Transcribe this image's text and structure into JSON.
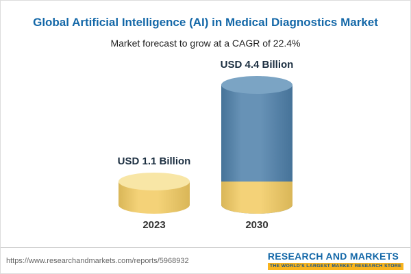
{
  "header": {
    "title": "Global Artificial Intelligence (AI) in Medical Diagnostics Market",
    "subtitle": "Market forecast to grow at a CAGR of 22.4%"
  },
  "chart_data": {
    "type": "bar",
    "title": "Global Artificial Intelligence (AI) in Medical Diagnostics Market",
    "subtitle": "Market forecast to grow at a CAGR of 22.4%",
    "cagr_pct": 22.4,
    "unit": "USD Billion",
    "categories": [
      "2023",
      "2030"
    ],
    "values": [
      1.1,
      4.4
    ],
    "value_labels": [
      "USD 1.1 Billion",
      "USD 4.4 Billion"
    ],
    "legend": "none",
    "axes": "none",
    "notes": "Cylinder-style bars; the 2030 bar has a gold base segment equal in height to the 2023 value, blue above it",
    "colors": {
      "accent_blue": "#1468a8",
      "bar_gold": "#f2cb62",
      "bar_gold_light": "#f8e6a6",
      "bar_blue": "#4e80aa",
      "bar_blue_light": "#7ba4c4",
      "brand_yellow": "#f8b41e"
    }
  },
  "footer": {
    "source_url": "https://www.researchandmarkets.com/reports/5968932",
    "brand_name": "RESEARCH AND MARKETS",
    "brand_tagline": "THE WORLD'S LARGEST MARKET RESEARCH STORE"
  }
}
